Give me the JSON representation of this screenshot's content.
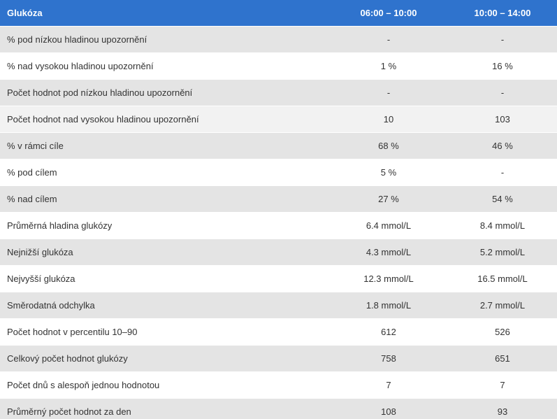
{
  "header": {
    "metric": "Glukóza",
    "col1": "06:00 – 10:00",
    "col2": "10:00 – 14:00"
  },
  "rows": [
    {
      "label": "% pod nízkou hladinou upozornění",
      "v1": "-",
      "v2": "-"
    },
    {
      "label": "% nad vysokou hladinou upozornění",
      "v1": "1 %",
      "v2": "16 %"
    },
    {
      "label": "Počet hodnot pod nízkou hladinou upozornění",
      "v1": "-",
      "v2": "-"
    },
    {
      "label": "Počet hodnot nad vysokou hladinou upozornění",
      "v1": "10",
      "v2": "103"
    },
    {
      "label": "% v rámci cíle",
      "v1": "68 %",
      "v2": "46 %"
    },
    {
      "label": "% pod cílem",
      "v1": "5 %",
      "v2": "-"
    },
    {
      "label": "% nad cílem",
      "v1": "27 %",
      "v2": "54 %"
    },
    {
      "label": "Průměrná hladina glukózy",
      "v1": "6.4 mmol/L",
      "v2": "8.4 mmol/L"
    },
    {
      "label": "Nejnižší glukóza",
      "v1": "4.3 mmol/L",
      "v2": "5.2 mmol/L"
    },
    {
      "label": "Nejvyšší glukóza",
      "v1": "12.3 mmol/L",
      "v2": "16.5 mmol/L"
    },
    {
      "label": "Směrodatná odchylka",
      "v1": "1.8 mmol/L",
      "v2": "2.7 mmol/L"
    },
    {
      "label": "Počet hodnot v percentilu 10–90",
      "v1": "612",
      "v2": "526"
    },
    {
      "label": "Celkový počet hodnot glukózy",
      "v1": "758",
      "v2": "651"
    },
    {
      "label": "Počet dnů s alespoň jednou hodnotou",
      "v1": "7",
      "v2": "7"
    },
    {
      "label": "Průměrný počet hodnot za den",
      "v1": "108",
      "v2": "93"
    }
  ],
  "colors": {
    "header_bg": "#2f73cd",
    "header_text": "#ffffff",
    "row_shaded": "#e4e4e4",
    "row_plain": "#ffffff",
    "text": "#333333"
  }
}
